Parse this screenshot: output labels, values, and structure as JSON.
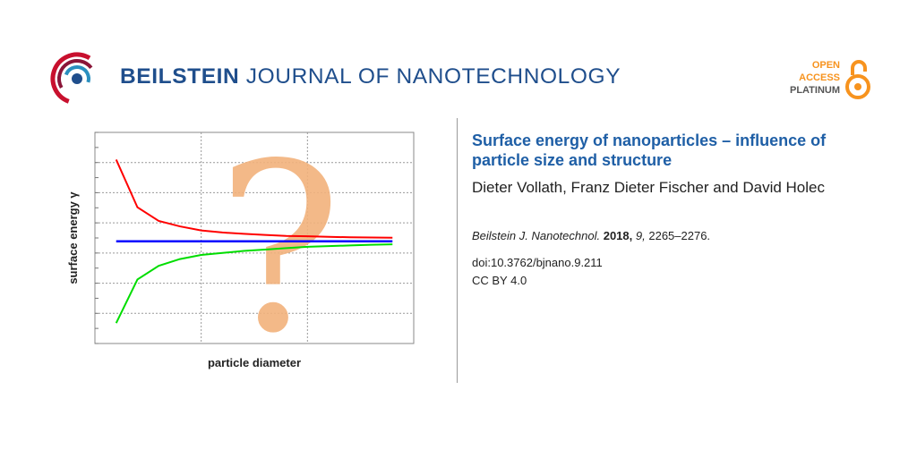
{
  "header": {
    "journal_bold": "BEILSTEIN",
    "journal_rest": " JOURNAL OF NANOTECHNOLOGY",
    "badge": {
      "line1": "OPEN",
      "line2": "ACCESS",
      "line3": "PLATINUM"
    },
    "colors": {
      "brand_blue": "#1f4e8c",
      "oa_orange": "#f7931e",
      "logo_red": "#c8102e"
    }
  },
  "article": {
    "title": "Surface energy of nanoparticles – influence of particle size and structure",
    "authors": "Dieter Vollath, Franz Dieter Fischer and David Holec",
    "journal_abbrev": "Beilstein J. Nanotechnol.",
    "year": "2018,",
    "volume": "9,",
    "pages": "2265–2276.",
    "doi": "doi:10.3762/bjnano.9.211",
    "license": "CC BY 4.0"
  },
  "chart_data": {
    "type": "line",
    "xlabel": "particle diameter",
    "ylabel": "surface energy γ",
    "overlay_glyph": "?",
    "grid": true,
    "x": [
      1,
      2,
      3,
      4,
      5,
      6,
      7,
      8,
      9,
      10,
      11,
      12,
      13,
      14
    ],
    "series": [
      {
        "color": "#ff0000",
        "values": [
          1.0,
          0.65,
          0.55,
          0.51,
          0.48,
          0.465,
          0.455,
          0.447,
          0.44,
          0.437,
          0.433,
          0.43,
          0.428,
          0.427
        ]
      },
      {
        "color": "#0000ff",
        "values": [
          0.4,
          0.4,
          0.4,
          0.4,
          0.4,
          0.4,
          0.4,
          0.4,
          0.4,
          0.4,
          0.4,
          0.4,
          0.4,
          0.4
        ]
      },
      {
        "color": "#00dd00",
        "values": [
          -0.2,
          0.12,
          0.22,
          0.27,
          0.3,
          0.315,
          0.33,
          0.34,
          0.35,
          0.36,
          0.365,
          0.37,
          0.375,
          0.378
        ]
      }
    ],
    "xlim": [
      0,
      15
    ],
    "ylim": [
      -0.35,
      1.2
    ]
  }
}
